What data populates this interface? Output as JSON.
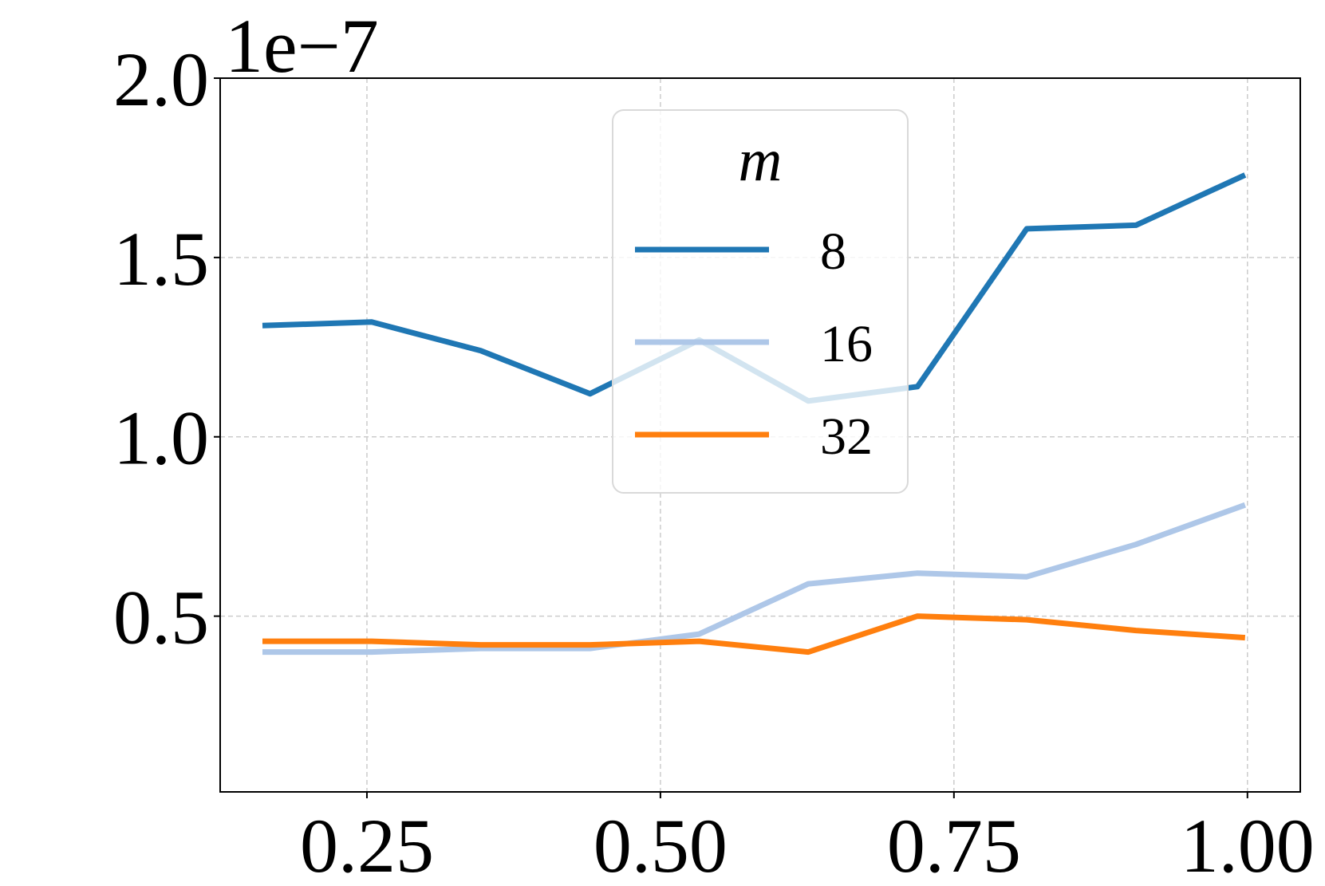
{
  "chart_data": {
    "type": "line",
    "title": "",
    "xlabel": "",
    "ylabel": "",
    "y_offset_text": "1e−7",
    "xlim": [
      0.125,
      1.045
    ],
    "ylim": [
      0.01,
      2.0
    ],
    "x_ticks": [
      0.25,
      0.5,
      0.75,
      1.0
    ],
    "x_tick_labels": [
      "0.25",
      "0.50",
      "0.75",
      "1.00"
    ],
    "y_ticks": [
      0.5,
      1.0,
      1.5,
      2.0
    ],
    "y_tick_labels": [
      "0.5",
      "1.0",
      "1.5",
      "2.0"
    ],
    "grid": true,
    "legend": {
      "title": "m",
      "placement": "upper-center"
    },
    "x": [
      0.161,
      0.254,
      0.347,
      0.44,
      0.533,
      0.626,
      0.719,
      0.812,
      0.905,
      0.998
    ],
    "series": [
      {
        "name": "8",
        "color": "#1f77b4",
        "values": [
          1.31,
          1.32,
          1.24,
          1.12,
          1.27,
          1.1,
          1.14,
          1.58,
          1.59,
          1.73
        ]
      },
      {
        "name": "16",
        "color": "#aec7e8",
        "values": [
          0.4,
          0.4,
          0.41,
          0.41,
          0.45,
          0.59,
          0.62,
          0.61,
          0.7,
          0.81
        ]
      },
      {
        "name": "32",
        "color": "#ff7f0e",
        "values": [
          0.43,
          0.43,
          0.42,
          0.42,
          0.43,
          0.4,
          0.5,
          0.49,
          0.46,
          0.44
        ]
      }
    ]
  }
}
